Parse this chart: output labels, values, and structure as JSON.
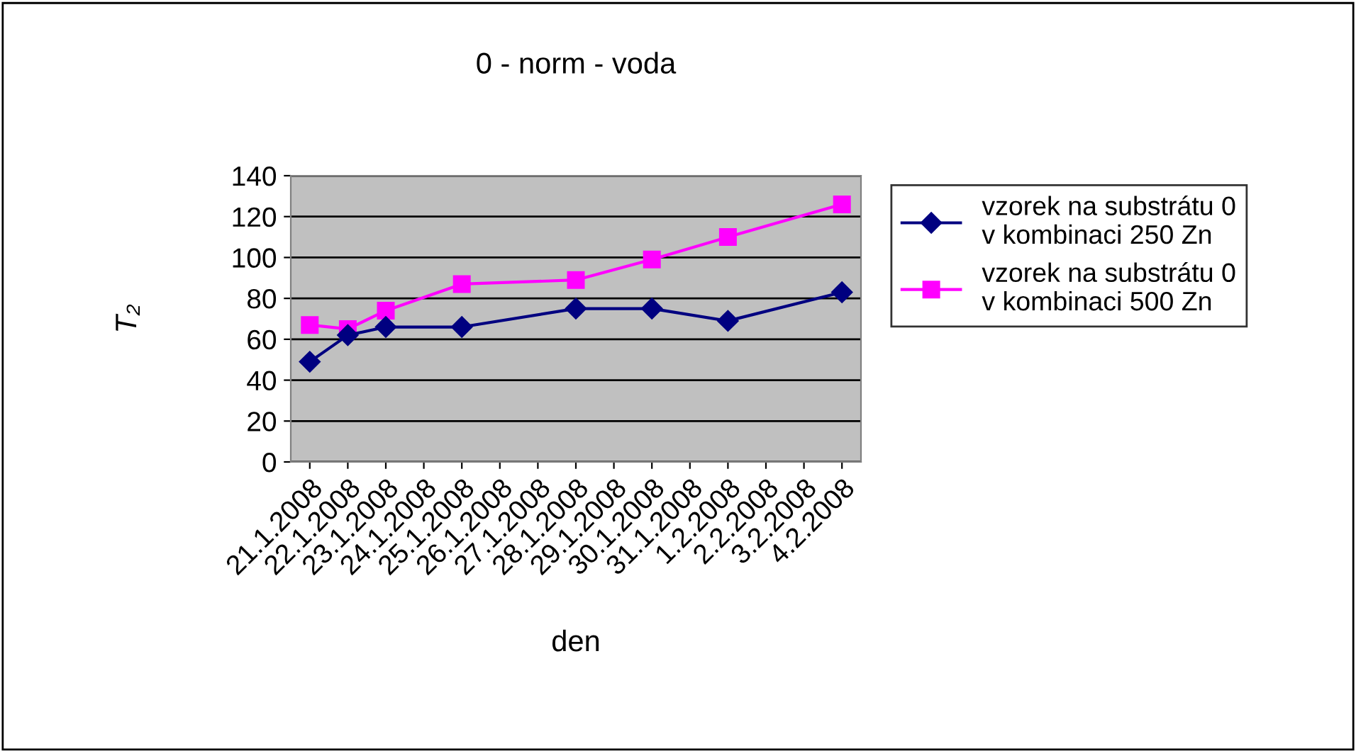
{
  "chart_data": {
    "type": "line",
    "title": "0 - norm - voda",
    "xlabel": "den",
    "ylabel": "T₂",
    "categories": [
      "21.1.2008",
      "22.1.2008",
      "23.1.2008",
      "24.1.2008",
      "25.1.2008",
      "26.1.2008",
      "27.1.2008",
      "28.1.2008",
      "29.1.2008",
      "30.1.2008",
      "31.1.2008",
      "1.2.2008",
      "2.2.2008",
      "3.2.2008",
      "4.2.2008"
    ],
    "series": [
      {
        "name": "vzorek na substrátu 0\nv kombinaci 250 Zn",
        "color": "#000080",
        "marker": "diamond",
        "values": [
          49,
          62,
          66,
          null,
          66,
          null,
          null,
          75,
          null,
          75,
          null,
          69,
          null,
          null,
          83
        ]
      },
      {
        "name": "vzorek na substrátu 0\nv kombinaci 500 Zn",
        "color": "#ff00ff",
        "marker": "square",
        "values": [
          67,
          65,
          74,
          null,
          87,
          null,
          null,
          89,
          null,
          99,
          null,
          110,
          null,
          null,
          126
        ]
      }
    ],
    "ylim": [
      0,
      140
    ],
    "yticks": [
      0,
      20,
      40,
      60,
      80,
      100,
      120,
      140
    ],
    "grid": "y",
    "legend": "right"
  }
}
